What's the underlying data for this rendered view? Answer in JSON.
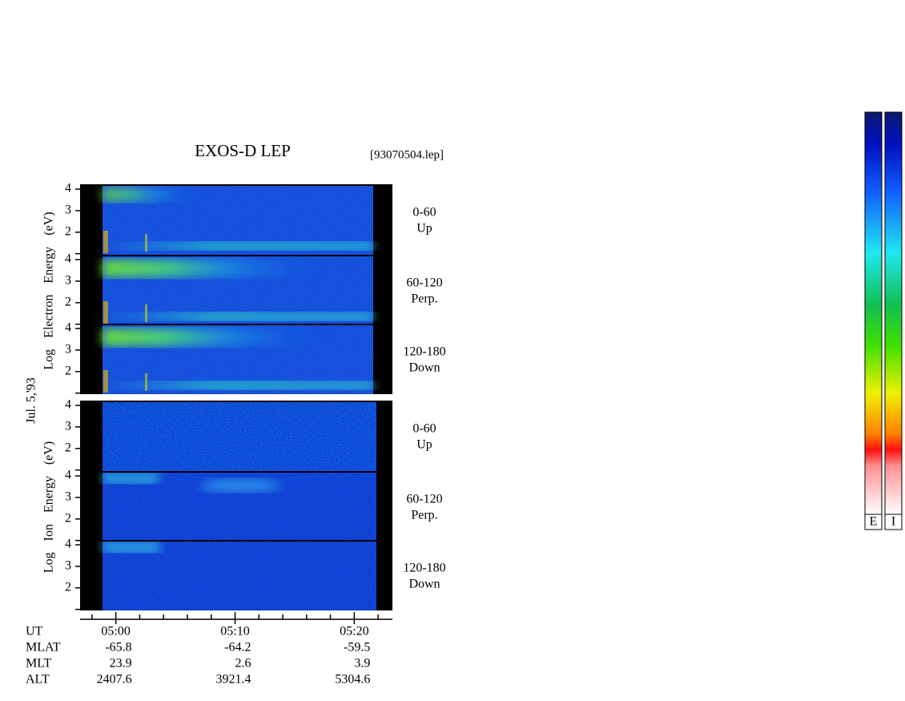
{
  "chart_data": {
    "type": "spectrogram",
    "title": "EXOS-D LEP",
    "file": "[93070504.lep]",
    "date": "Jul. 5,'93",
    "blocks": [
      {
        "ylabel": "Log Electron Energy (eV)",
        "panels": [
          {
            "angle": "0-60",
            "direction": "Up"
          },
          {
            "angle": "60-120",
            "direction": "Perp."
          },
          {
            "angle": "120-180",
            "direction": "Down"
          }
        ]
      },
      {
        "ylabel": "Log Ion Energy (eV)",
        "panels": [
          {
            "angle": "0-60",
            "direction": "Up"
          },
          {
            "angle": "60-120",
            "direction": "Perp."
          },
          {
            "angle": "120-180",
            "direction": "Down"
          }
        ]
      }
    ],
    "ylim": [
      0.95,
      4.15
    ],
    "yticks": [
      {
        "value": 1,
        "label": null
      },
      2,
      3,
      4
    ],
    "xlim": [
      297,
      323.2
    ],
    "xticks": [
      {
        "value": 300,
        "label": "05:00"
      },
      {
        "value": 310,
        "label": "05:10"
      },
      {
        "value": 320,
        "label": "05:20"
      }
    ],
    "xticks_minor": [
      298,
      302,
      304,
      306,
      308,
      312,
      314,
      316,
      318,
      322
    ],
    "ut_label": "UT",
    "orbit": [
      {
        "name": "MLAT",
        "values": [
          -65.8,
          -64.2,
          -59.5
        ]
      },
      {
        "name": "MLT",
        "values": [
          23.9,
          2.6,
          3.9
        ]
      },
      {
        "name": "ALT",
        "values": [
          2407.6,
          3921.4,
          5304.6
        ]
      }
    ],
    "colorbars": [
      "E",
      "I"
    ]
  }
}
